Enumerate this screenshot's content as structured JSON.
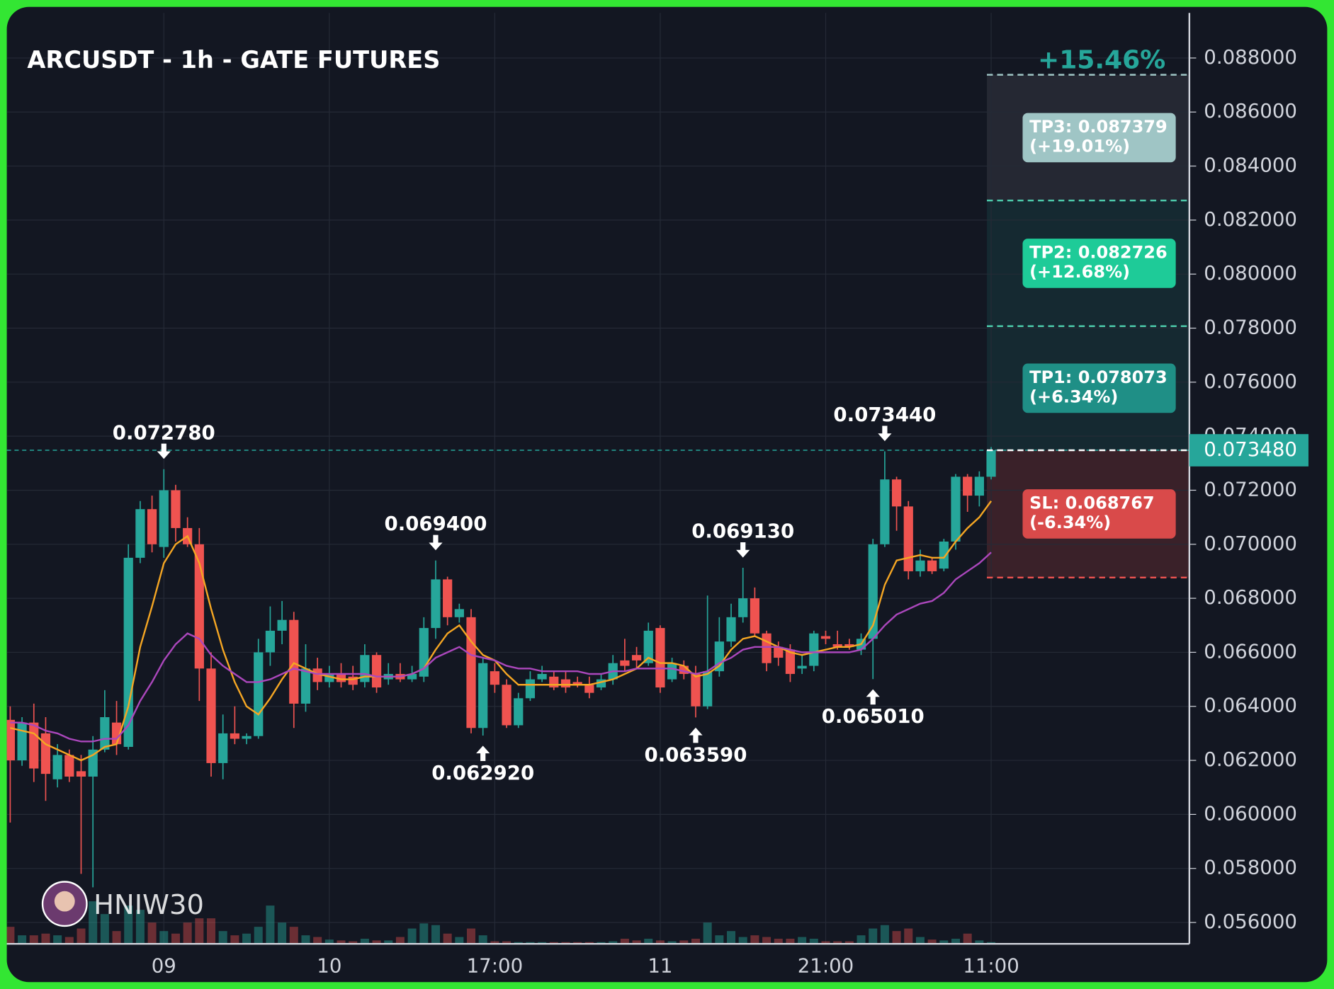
{
  "chart_data": {
    "type": "candlestick",
    "title": "ARCUSDT - 1h - GATE FUTURES",
    "categories": [
      null,
      null,
      null,
      null,
      null,
      null,
      null,
      null,
      null,
      null,
      null,
      null,
      null,
      "09",
      null,
      null,
      null,
      null,
      null,
      null,
      null,
      null,
      null,
      null,
      null,
      null,
      null,
      "10",
      null,
      null,
      null,
      null,
      null,
      null,
      null,
      null,
      null,
      null,
      null,
      null,
      null,
      "17:00",
      null,
      null,
      null,
      null,
      null,
      null,
      null,
      null,
      null,
      null,
      null,
      null,
      null,
      "11",
      null,
      null,
      null,
      null,
      null,
      null,
      null,
      null,
      null,
      null,
      null,
      null,
      null,
      "21:00",
      null,
      null,
      null,
      null,
      null,
      null,
      null,
      null,
      null,
      null,
      null,
      null,
      null,
      "11:00"
    ],
    "open": [
      0.0635,
      0.062,
      0.0634,
      0.063,
      0.0613,
      0.0622,
      0.0616,
      0.0614,
      0.0624,
      0.0634,
      0.0625,
      0.0695,
      0.0713,
      0.0699,
      0.072,
      0.0706,
      0.07,
      0.0654,
      0.0619,
      0.063,
      0.0628,
      0.0629,
      0.066,
      0.0668,
      0.0672,
      0.0641,
      0.0654,
      0.0649,
      0.0652,
      0.0651,
      0.0649,
      0.0659,
      0.065,
      0.0652,
      0.065,
      0.0651,
      0.0669,
      0.0687,
      0.0673,
      0.0673,
      0.0632,
      0.0653,
      0.0648,
      0.0633,
      0.0643,
      0.065,
      0.0651,
      0.065,
      0.0649,
      0.0648,
      0.0647,
      0.065,
      0.0657,
      0.0659,
      0.0656,
      0.0669,
      0.065,
      0.0655,
      0.0652,
      0.064,
      0.0653,
      0.0664,
      0.0673,
      0.068,
      0.0667,
      0.0662,
      0.0661,
      0.0654,
      0.0655,
      0.0666,
      0.0663,
      0.0663,
      0.0661,
      0.0665,
      0.07,
      0.0724,
      0.0714,
      0.069,
      0.0694,
      0.0691,
      0.0701,
      0.0725,
      0.0718,
      0.0725
    ],
    "high": [
      0.064,
      0.0636,
      0.0641,
      0.0636,
      0.0626,
      0.0624,
      0.0622,
      0.0629,
      0.0646,
      0.0642,
      0.07,
      0.0716,
      0.0718,
      0.07278,
      0.0722,
      0.071,
      0.0706,
      0.066,
      0.0637,
      0.064,
      0.063,
      0.0665,
      0.0677,
      0.0679,
      0.0675,
      0.0663,
      0.0658,
      0.0655,
      0.0656,
      0.0655,
      0.0663,
      0.066,
      0.0656,
      0.0656,
      0.0655,
      0.0673,
      0.0694,
      0.0688,
      0.0678,
      0.0676,
      0.0658,
      0.0656,
      0.065,
      0.0645,
      0.0653,
      0.0655,
      0.0653,
      0.0653,
      0.0651,
      0.0651,
      0.0652,
      0.0659,
      0.0665,
      0.0662,
      0.0671,
      0.067,
      0.0658,
      0.0657,
      0.0655,
      0.0681,
      0.0673,
      0.0678,
      0.06913,
      0.0684,
      0.0668,
      0.0664,
      0.0663,
      0.0659,
      0.0668,
      0.0668,
      0.0668,
      0.0665,
      0.0667,
      0.0702,
      0.07344,
      0.0725,
      0.0716,
      0.0698,
      0.0695,
      0.0702,
      0.0726,
      0.0726,
      0.0727,
      0.0736
    ],
    "low": [
      0.0597,
      0.0618,
      0.0612,
      0.0605,
      0.061,
      0.0612,
      0.0578,
      0.0573,
      0.0623,
      0.0622,
      0.0624,
      0.0693,
      0.0697,
      0.0695,
      0.0701,
      0.0699,
      0.0642,
      0.0614,
      0.0613,
      0.0626,
      0.0626,
      0.0628,
      0.0655,
      0.0663,
      0.0632,
      0.0638,
      0.0646,
      0.0647,
      0.0647,
      0.0646,
      0.0647,
      0.0645,
      0.0648,
      0.0649,
      0.0649,
      0.0649,
      0.0665,
      0.067,
      0.0671,
      0.063,
      0.06292,
      0.0645,
      0.0632,
      0.0632,
      0.0642,
      0.0649,
      0.0646,
      0.0645,
      0.0647,
      0.0643,
      0.0646,
      0.0648,
      0.0653,
      0.0654,
      0.0655,
      0.0645,
      0.0649,
      0.065,
      0.06359,
      0.0639,
      0.0651,
      0.0662,
      0.0671,
      0.0666,
      0.0653,
      0.0655,
      0.0649,
      0.0652,
      0.0653,
      0.0663,
      0.0661,
      0.0661,
      0.0659,
      0.06501,
      0.0699,
      0.0705,
      0.0687,
      0.0688,
      0.0689,
      0.069,
      0.0698,
      0.0712,
      0.0714,
      0.0724
    ],
    "close": [
      0.062,
      0.0634,
      0.0617,
      0.0615,
      0.0622,
      0.0614,
      0.0614,
      0.0624,
      0.0636,
      0.0626,
      0.0695,
      0.0713,
      0.07,
      0.072,
      0.0706,
      0.07,
      0.0654,
      0.0619,
      0.063,
      0.0628,
      0.0629,
      0.066,
      0.0668,
      0.0672,
      0.0641,
      0.0654,
      0.0649,
      0.0652,
      0.0649,
      0.0648,
      0.0659,
      0.0647,
      0.0652,
      0.065,
      0.0652,
      0.0669,
      0.0687,
      0.0673,
      0.0676,
      0.0632,
      0.0656,
      0.0648,
      0.0633,
      0.0643,
      0.065,
      0.0652,
      0.0647,
      0.0647,
      0.0648,
      0.0645,
      0.065,
      0.0656,
      0.0655,
      0.0657,
      0.0668,
      0.0647,
      0.0656,
      0.0652,
      0.064,
      0.0653,
      0.0664,
      0.0673,
      0.068,
      0.0667,
      0.0656,
      0.0658,
      0.0652,
      0.0655,
      0.0667,
      0.0665,
      0.0662,
      0.0662,
      0.0665,
      0.07,
      0.0724,
      0.0714,
      0.069,
      0.0694,
      0.069,
      0.0701,
      0.0725,
      0.0718,
      0.0725,
      0.07348
    ],
    "volume": [
      20,
      10,
      10,
      12,
      10,
      8,
      18,
      50,
      35,
      15,
      45,
      40,
      25,
      15,
      12,
      25,
      30,
      30,
      15,
      10,
      12,
      20,
      45,
      25,
      20,
      10,
      8,
      5,
      4,
      3,
      6,
      4,
      4,
      8,
      18,
      24,
      22,
      12,
      8,
      18,
      10,
      3,
      3,
      2,
      2,
      2,
      2,
      2,
      2,
      2,
      2,
      3,
      6,
      4,
      6,
      4,
      3,
      4,
      6,
      25,
      10,
      15,
      8,
      10,
      8,
      6,
      6,
      8,
      6,
      3,
      3,
      3,
      10,
      18,
      22,
      15,
      18,
      8,
      5,
      4,
      6,
      12,
      4,
      2
    ],
    "up_color": "#26a69a",
    "down_color": "#ef5350",
    "series": [
      {
        "color": "#f5a623",
        "values": [
          0.0632,
          0.0631,
          0.063,
          0.0626,
          0.0624,
          0.0622,
          0.062,
          0.0622,
          0.0625,
          0.0626,
          0.064,
          0.0662,
          0.0677,
          0.0693,
          0.07,
          0.0703,
          0.0693,
          0.0676,
          0.0661,
          0.0649,
          0.064,
          0.0637,
          0.0643,
          0.065,
          0.0656,
          0.0654,
          0.0652,
          0.0651,
          0.065,
          0.065,
          0.0651,
          0.0651,
          0.0651,
          0.0651,
          0.0652,
          0.0654,
          0.0661,
          0.0667,
          0.067,
          0.0664,
          0.0659,
          0.0657,
          0.0652,
          0.0648,
          0.0648,
          0.0648,
          0.0648,
          0.0648,
          0.0648,
          0.0648,
          0.0649,
          0.065,
          0.0652,
          0.0654,
          0.0658,
          0.0656,
          0.0656,
          0.0655,
          0.0651,
          0.0652,
          0.0655,
          0.0661,
          0.0665,
          0.0666,
          0.0664,
          0.0662,
          0.066,
          0.0659,
          0.066,
          0.0661,
          0.0662,
          0.0662,
          0.0663,
          0.067,
          0.0685,
          0.0694,
          0.0695,
          0.0696,
          0.0695,
          0.0695,
          0.0701,
          0.0706,
          0.071,
          0.0716
        ]
      },
      {
        "color": "#ab47bc",
        "values": [
          0.0634,
          0.0634,
          0.0633,
          0.0631,
          0.063,
          0.0628,
          0.0627,
          0.0627,
          0.0628,
          0.0628,
          0.0633,
          0.0642,
          0.0649,
          0.0657,
          0.0663,
          0.0667,
          0.0665,
          0.0659,
          0.0655,
          0.0652,
          0.0649,
          0.0649,
          0.065,
          0.0652,
          0.0654,
          0.0653,
          0.0652,
          0.0652,
          0.0652,
          0.0652,
          0.0652,
          0.0651,
          0.0651,
          0.0651,
          0.0652,
          0.0654,
          0.0658,
          0.066,
          0.0662,
          0.0659,
          0.0658,
          0.0657,
          0.0655,
          0.0654,
          0.0654,
          0.0653,
          0.0653,
          0.0653,
          0.0653,
          0.0652,
          0.0652,
          0.0653,
          0.0653,
          0.0654,
          0.0654,
          0.0654,
          0.0654,
          0.0653,
          0.0652,
          0.0653,
          0.0656,
          0.0658,
          0.0661,
          0.0662,
          0.0662,
          0.0662,
          0.0661,
          0.066,
          0.066,
          0.066,
          0.066,
          0.066,
          0.0661,
          0.0665,
          0.067,
          0.0674,
          0.0676,
          0.0678,
          0.0679,
          0.0682,
          0.0687,
          0.069,
          0.0693,
          0.0697
        ]
      }
    ],
    "ylim": [
      0.05521,
      0.08967
    ],
    "yticks": [
      {
        "value": 0.056,
        "label": "0.056000"
      },
      {
        "value": 0.058,
        "label": "0.058000"
      },
      {
        "value": 0.06,
        "label": "0.060000"
      },
      {
        "value": 0.062,
        "label": "0.062000"
      },
      {
        "value": 0.064,
        "label": "0.064000"
      },
      {
        "value": 0.066,
        "label": "0.066000"
      },
      {
        "value": 0.068,
        "label": "0.068000"
      },
      {
        "value": 0.07,
        "label": "0.070000"
      },
      {
        "value": 0.072,
        "label": "0.072000"
      },
      {
        "value": 0.074,
        "label": "0.074000"
      },
      {
        "value": 0.076,
        "label": "0.076000"
      },
      {
        "value": 0.078,
        "label": "0.078000"
      },
      {
        "value": 0.08,
        "label": "0.080000"
      },
      {
        "value": 0.082,
        "label": "0.082000"
      },
      {
        "value": 0.084,
        "label": "0.084000"
      },
      {
        "value": 0.086,
        "label": "0.086000"
      },
      {
        "value": 0.088,
        "label": "0.088000"
      }
    ],
    "grid": true,
    "high_labels": [
      {
        "index": 13,
        "label": "0.072780"
      },
      {
        "index": 36,
        "label": "0.069400"
      },
      {
        "index": 62,
        "label": "0.069130"
      },
      {
        "index": 74,
        "label": "0.073440"
      }
    ],
    "low_labels": [
      {
        "index": 40,
        "label": "0.062920"
      },
      {
        "index": 58,
        "label": "0.063590"
      },
      {
        "index": 73,
        "label": "0.065010"
      }
    ],
    "last_price": {
      "value": 0.07348,
      "label": "0.073480"
    },
    "position": {
      "profit_label": "+15.46%",
      "targets": [
        {
          "value": 0.087379,
          "lines": [
            "TP3: 0.087379",
            "(+19.01%)"
          ],
          "color": "#9fc5c5"
        },
        {
          "value": 0.082726,
          "lines": [
            "TP2: 0.082726",
            "(+12.68%)"
          ],
          "color": "#1ecb98"
        },
        {
          "value": 0.078073,
          "lines": [
            "TP1: 0.078073",
            "(+6.34%)"
          ],
          "color": "#1f8f86"
        }
      ],
      "stop": {
        "value": 0.068767,
        "lines": [
          "SL: 0.068767",
          "(-6.34%)"
        ],
        "color": "#d94a4a"
      }
    },
    "watermark": "HNIW30"
  }
}
